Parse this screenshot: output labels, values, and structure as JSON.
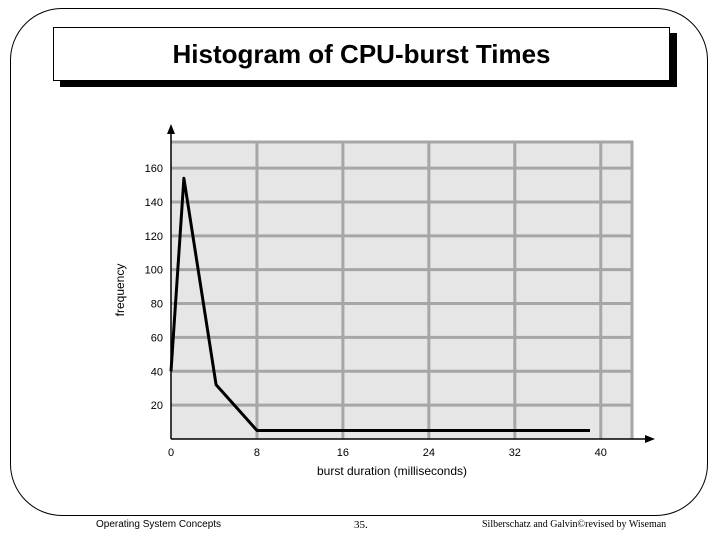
{
  "slide": {
    "title": "Histogram of CPU-burst Times",
    "footer_left": "Operating System Concepts",
    "footer_page": "35.",
    "footer_right": "Silberschatz and Galvin©revised by Wiseman"
  },
  "chart_data": {
    "type": "line",
    "title": "Histogram of CPU-burst Times",
    "xlabel": "burst duration (milliseconds)",
    "ylabel": "frequency",
    "xlim": [
      0,
      43
    ],
    "ylim": [
      0,
      176
    ],
    "x_ticks": [
      0,
      8,
      16,
      24,
      32,
      40
    ],
    "y_ticks": [
      20,
      40,
      60,
      80,
      100,
      120,
      140,
      160
    ],
    "grid": true,
    "series": [
      {
        "x": [
          0,
          1.2,
          4.2,
          8,
          39
        ],
        "y": [
          40,
          154,
          32,
          5,
          5
        ]
      }
    ]
  }
}
